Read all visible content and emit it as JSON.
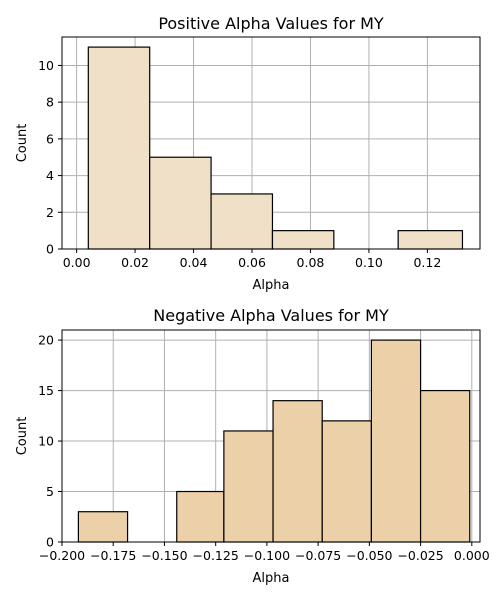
{
  "chart_data": [
    {
      "type": "bar",
      "title": "Positive Alpha Values for MY",
      "xlabel": "Alpha",
      "ylabel": "Count",
      "bin_edges": [
        0.004,
        0.025,
        0.046,
        0.067,
        0.088,
        0.11,
        0.132
      ],
      "values": [
        11,
        5,
        3,
        1,
        0,
        1
      ],
      "xlim": [
        -0.005,
        0.138
      ],
      "ylim": [
        0,
        11.55
      ],
      "xticks": [
        0.0,
        0.02,
        0.04,
        0.06,
        0.08,
        0.1,
        0.12
      ],
      "xtick_labels": [
        "0.00",
        "0.02",
        "0.04",
        "0.06",
        "0.08",
        "0.10",
        "0.12"
      ],
      "yticks": [
        0,
        2,
        4,
        6,
        8,
        10
      ],
      "ytick_labels": [
        "0",
        "2",
        "4",
        "6",
        "8",
        "10"
      ],
      "grid": true,
      "bar_color": "#F0E0C8",
      "edge_color": "#000000",
      "grid_color": "#b0b0b0"
    },
    {
      "type": "bar",
      "title": "Negative Alpha Values for MY",
      "xlabel": "Alpha",
      "ylabel": "Count",
      "bin_edges": [
        -0.192,
        -0.168,
        -0.144,
        -0.121,
        -0.097,
        -0.073,
        -0.049,
        -0.025,
        -0.001
      ],
      "values": [
        3,
        0,
        5,
        11,
        14,
        12,
        20,
        15
      ],
      "xlim": [
        -0.2,
        0.004
      ],
      "ylim": [
        0,
        21
      ],
      "xticks": [
        -0.2,
        -0.175,
        -0.15,
        -0.125,
        -0.1,
        -0.075,
        -0.05,
        -0.025,
        0.0
      ],
      "xtick_labels": [
        "−0.200",
        "−0.175",
        "−0.150",
        "−0.125",
        "−0.100",
        "−0.075",
        "−0.050",
        "−0.025",
        "0.000"
      ],
      "yticks": [
        0,
        5,
        10,
        15,
        20
      ],
      "ytick_labels": [
        "0",
        "5",
        "10",
        "15",
        "20"
      ],
      "grid": true,
      "bar_color": "#ECD0A8",
      "edge_color": "#000000",
      "grid_color": "#b0b0b0"
    }
  ]
}
